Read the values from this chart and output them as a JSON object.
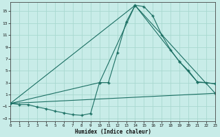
{
  "xlabel": "Humidex (Indice chaleur)",
  "background_color": "#c8ece8",
  "grid_color": "#a8d8d0",
  "line_color": "#1a6e62",
  "xlim": [
    0,
    23
  ],
  "ylim": [
    -3.5,
    16.5
  ],
  "yticks": [
    -3,
    -1,
    1,
    3,
    5,
    7,
    9,
    11,
    13,
    15
  ],
  "xticks": [
    0,
    1,
    2,
    3,
    4,
    5,
    6,
    7,
    8,
    9,
    10,
    11,
    12,
    13,
    14,
    15,
    16,
    17,
    18,
    19,
    20,
    21,
    22,
    23
  ],
  "line1_x": [
    0,
    1,
    2,
    3,
    4,
    5,
    6,
    7,
    8,
    9,
    10,
    11,
    12,
    13,
    14,
    15,
    16,
    17,
    18,
    19,
    20,
    21,
    22,
    23
  ],
  "line1_y": [
    -0.5,
    -0.7,
    -0.7,
    -1.1,
    -1.4,
    -1.8,
    -2.1,
    -2.4,
    -2.5,
    -2.2,
    3.0,
    3.0,
    8.0,
    13.2,
    16.0,
    15.8,
    14.2,
    11.0,
    8.5,
    6.5,
    5.0,
    3.1,
    3.0,
    2.8
  ],
  "line2_x": [
    0,
    10,
    14,
    19,
    21,
    23
  ],
  "line2_y": [
    -0.5,
    3.0,
    16.0,
    6.5,
    3.1,
    2.8
  ],
  "line3_x": [
    0,
    14,
    23
  ],
  "line3_y": [
    -0.5,
    16.0,
    1.2
  ],
  "line4_x": [
    0,
    23
  ],
  "line4_y": [
    -0.5,
    1.2
  ]
}
